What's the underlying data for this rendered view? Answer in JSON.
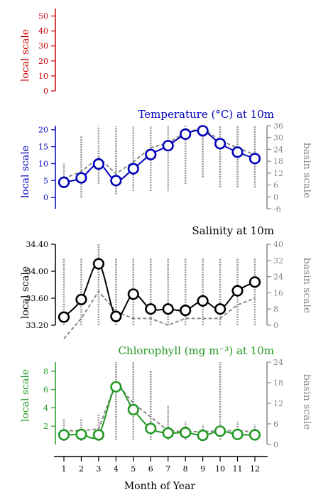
{
  "colors": {
    "top": "#cc0000",
    "temperature": "#0000bb",
    "salinity": "#000000",
    "chlorophyll": "#229922",
    "basin": "#888888"
  },
  "x_axis": {
    "label": "Month of Year",
    "ticks": [
      "1",
      "2",
      "3",
      "4",
      "5",
      "6",
      "7",
      "8",
      "9",
      "10",
      "11",
      "12"
    ]
  },
  "chart_data": [
    {
      "name": "top",
      "type": "line",
      "title": "",
      "ylabel": "local scale",
      "ylim": [
        0,
        55
      ],
      "yticks": [
        0,
        10,
        20,
        30,
        40,
        50
      ],
      "yticklabels": [
        "0",
        "10",
        "20",
        "30",
        "40",
        "50"
      ],
      "x": [],
      "series": []
    },
    {
      "name": "temperature",
      "type": "line",
      "title": "Temperature (°C) at 10m",
      "ylabel": "local scale",
      "ylabel2": "basin scale",
      "ylim": [
        -3.3,
        21.2
      ],
      "yticks": [
        0,
        5,
        10,
        15,
        20
      ],
      "yticklabels": [
        "0",
        "5",
        "10",
        "15",
        "20"
      ],
      "ylim2": [
        -6,
        36
      ],
      "yticks2": [
        -6,
        0,
        6,
        12,
        18,
        24,
        30,
        36
      ],
      "yticklabels2": [
        "-6",
        "0",
        "6",
        "12",
        "18",
        "24",
        "30",
        "36"
      ],
      "x": [
        1,
        2,
        3,
        4,
        5,
        6,
        7,
        8,
        9,
        10,
        11,
        12
      ],
      "local": [
        4.5,
        5.8,
        9.9,
        5.0,
        8.5,
        12.7,
        15.3,
        18.7,
        19.7,
        15.9,
        13.4,
        11.5
      ],
      "basin": [
        5.6,
        7.7,
        11.8,
        7.0,
        10.5,
        14.7,
        16.1,
        19.2,
        20.5,
        16.8,
        14.7,
        12.6
      ],
      "basin_range": [
        [
          3,
          10
        ],
        [
          0,
          18
        ],
        [
          4,
          21
        ],
        [
          1,
          21
        ],
        [
          2,
          23
        ],
        [
          2,
          26
        ],
        [
          2,
          29
        ],
        [
          4,
          31
        ],
        [
          6,
          34
        ],
        [
          3,
          26
        ],
        [
          3,
          25
        ],
        [
          3,
          22
        ]
      ]
    },
    {
      "name": "salinity",
      "type": "line",
      "title": "Salinity at 10m",
      "ylabel": "local scale",
      "ylabel2": "basin scale",
      "ylim": [
        33.2,
        34.4
      ],
      "yticks": [
        33.2,
        33.6,
        34.0,
        34.4
      ],
      "yticklabels": [
        "33.20",
        "33.60",
        "34.00",
        "34.40"
      ],
      "ylim2": [
        0,
        40
      ],
      "yticks2": [
        0,
        8,
        16,
        24,
        32,
        40
      ],
      "yticklabels2": [
        "0",
        "8",
        "16",
        "24",
        "32",
        "40"
      ],
      "x": [
        1,
        2,
        3,
        4,
        5,
        6,
        7,
        8,
        9,
        10,
        11,
        12
      ],
      "local": [
        33.32,
        33.58,
        34.11,
        33.33,
        33.66,
        33.44,
        33.44,
        33.42,
        33.56,
        33.44,
        33.71,
        33.84
      ],
      "basin": [
        33.0,
        33.3,
        33.7,
        33.4,
        33.3,
        33.3,
        33.2,
        33.3,
        33.3,
        33.3,
        33.5,
        33.6
      ],
      "basin_range": [
        [
          31.5,
          34.2
        ],
        [
          31.5,
          34.2
        ],
        [
          31.5,
          34.4
        ],
        [
          31.8,
          34.2
        ],
        [
          31.5,
          34.2
        ],
        [
          31.8,
          34.2
        ],
        [
          31.5,
          34.2
        ],
        [
          31.8,
          34.2
        ],
        [
          31.5,
          34.2
        ],
        [
          31.8,
          34.2
        ],
        [
          31.5,
          34.2
        ],
        [
          31.8,
          34.2
        ]
      ]
    },
    {
      "name": "chlorophyll",
      "type": "line",
      "title": "Chlorophyll (mg m⁻³) at 10m",
      "ylabel": "local scale",
      "ylabel2": "basin scale",
      "ylim": [
        0,
        9
      ],
      "yticks": [
        2,
        4,
        6,
        8
      ],
      "yticklabels": [
        "2",
        "4",
        "6",
        "8"
      ],
      "ylim2": [
        0,
        24
      ],
      "yticks2": [
        0,
        6,
        12,
        18,
        24
      ],
      "yticklabels2": [
        "0",
        "6",
        "12",
        "18",
        "24"
      ],
      "x": [
        1,
        2,
        3,
        4,
        5,
        6,
        7,
        8,
        9,
        10,
        11,
        12
      ],
      "local": [
        1.05,
        1.1,
        1.05,
        6.3,
        3.8,
        1.75,
        1.25,
        1.3,
        1.0,
        1.45,
        1.1,
        1.05
      ],
      "basin": [
        1.5,
        1.5,
        1.7,
        6.8,
        4.5,
        3.0,
        1.5,
        1.4,
        1.4,
        1.5,
        1.5,
        1.4
      ],
      "basin_range": [
        [
          0.4,
          2.8
        ],
        [
          0.4,
          2.8
        ],
        [
          0.4,
          3.4
        ],
        [
          0.5,
          24
        ],
        [
          0.5,
          24
        ],
        [
          0.5,
          8.0
        ],
        [
          0.5,
          4.2
        ],
        [
          0.5,
          2.5
        ],
        [
          0.5,
          2.2
        ],
        [
          0.5,
          9.5
        ],
        [
          0.5,
          2.5
        ],
        [
          0.5,
          2.2
        ]
      ]
    }
  ]
}
